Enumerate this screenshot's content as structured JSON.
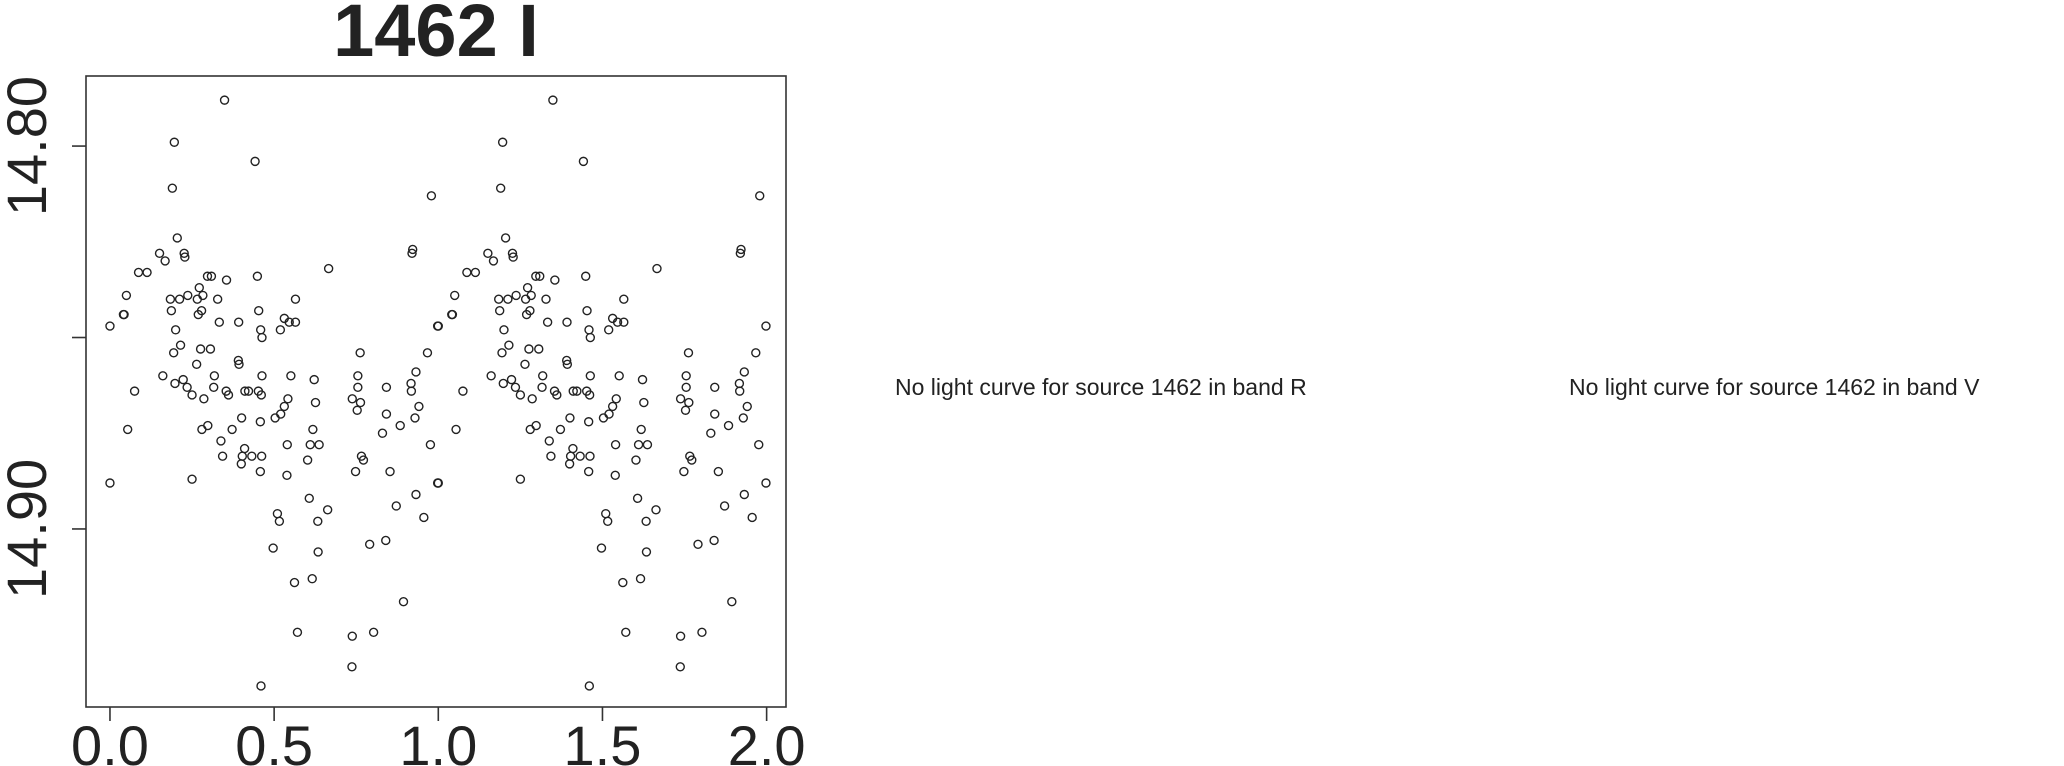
{
  "chart_data": {
    "type": "scatter",
    "title": "1462 I",
    "xlabel": "",
    "ylabel": "",
    "xlim": [
      -0.073,
      2.059
    ],
    "ylim": [
      14.9465,
      14.7817
    ],
    "y_inverted": true,
    "grid": false,
    "x_ticks": [
      0.0,
      0.5,
      1.0,
      1.5,
      2.0
    ],
    "x_tick_labels": [
      "0.0",
      "0.5",
      "1.0",
      "1.5",
      "2.0"
    ],
    "y_ticks": [
      14.8,
      14.85,
      14.9
    ],
    "y_tick_labels": [
      "14.80",
      "",
      "14.90"
    ],
    "marker": "open-circle",
    "marker_color": "#222222",
    "points": [
      [
        0.349,
        14.788
      ],
      [
        0.196,
        14.799
      ],
      [
        0.442,
        14.804
      ],
      [
        0.19,
        14.811
      ],
      [
        0.979,
        14.813
      ],
      [
        0.205,
        14.824
      ],
      [
        0.151,
        14.828
      ],
      [
        0.168,
        14.83
      ],
      [
        0.226,
        14.828
      ],
      [
        0.228,
        14.829
      ],
      [
        0.922,
        14.827
      ],
      [
        0.92,
        14.828
      ],
      [
        0.087,
        14.833
      ],
      [
        0.113,
        14.833
      ],
      [
        0.666,
        14.832
      ],
      [
        0.297,
        14.834
      ],
      [
        0.309,
        14.834
      ],
      [
        0.355,
        14.835
      ],
      [
        0.449,
        14.834
      ],
      [
        0.272,
        14.837
      ],
      [
        0.05,
        14.839
      ],
      [
        0.184,
        14.84
      ],
      [
        0.212,
        14.84
      ],
      [
        0.237,
        14.839
      ],
      [
        0.266,
        14.84
      ],
      [
        0.283,
        14.839
      ],
      [
        0.328,
        14.84
      ],
      [
        0.565,
        14.84
      ],
      [
        0.187,
        14.843
      ],
      [
        0.279,
        14.843
      ],
      [
        0.269,
        14.844
      ],
      [
        0.453,
        14.843
      ],
      [
        0.041,
        14.844
      ],
      [
        0.043,
        14.844
      ],
      [
        0.0,
        14.847
      ],
      [
        0.998,
        14.847
      ],
      [
        0.333,
        14.846
      ],
      [
        0.392,
        14.846
      ],
      [
        0.531,
        14.845
      ],
      [
        0.546,
        14.846
      ],
      [
        0.565,
        14.846
      ],
      [
        0.2,
        14.848
      ],
      [
        0.459,
        14.848
      ],
      [
        0.463,
        14.85
      ],
      [
        0.519,
        14.848
      ],
      [
        0.215,
        14.852
      ],
      [
        0.194,
        14.854
      ],
      [
        0.276,
        14.853
      ],
      [
        0.306,
        14.853
      ],
      [
        0.264,
        14.857
      ],
      [
        0.391,
        14.856
      ],
      [
        0.393,
        14.857
      ],
      [
        0.762,
        14.854
      ],
      [
        0.967,
        14.854
      ],
      [
        0.932,
        14.859
      ],
      [
        0.161,
        14.86
      ],
      [
        0.198,
        14.862
      ],
      [
        0.223,
        14.861
      ],
      [
        0.235,
        14.863
      ],
      [
        0.318,
        14.86
      ],
      [
        0.316,
        14.863
      ],
      [
        0.463,
        14.86
      ],
      [
        0.551,
        14.86
      ],
      [
        0.622,
        14.861
      ],
      [
        0.755,
        14.86
      ],
      [
        0.755,
        14.863
      ],
      [
        0.842,
        14.863
      ],
      [
        0.917,
        14.862
      ],
      [
        0.918,
        14.864
      ],
      [
        0.075,
        14.864
      ],
      [
        0.354,
        14.864
      ],
      [
        0.411,
        14.864
      ],
      [
        0.422,
        14.864
      ],
      [
        0.452,
        14.864
      ],
      [
        0.25,
        14.865
      ],
      [
        0.286,
        14.866
      ],
      [
        0.361,
        14.865
      ],
      [
        0.461,
        14.865
      ],
      [
        0.542,
        14.866
      ],
      [
        0.626,
        14.867
      ],
      [
        0.738,
        14.866
      ],
      [
        0.763,
        14.867
      ],
      [
        0.753,
        14.869
      ],
      [
        0.941,
        14.868
      ],
      [
        0.531,
        14.868
      ],
      [
        0.52,
        14.87
      ],
      [
        0.503,
        14.871
      ],
      [
        0.401,
        14.871
      ],
      [
        0.458,
        14.872
      ],
      [
        0.842,
        14.87
      ],
      [
        0.929,
        14.871
      ],
      [
        0.884,
        14.873
      ],
      [
        0.83,
        14.875
      ],
      [
        0.054,
        14.874
      ],
      [
        0.28,
        14.874
      ],
      [
        0.298,
        14.873
      ],
      [
        0.372,
        14.874
      ],
      [
        0.618,
        14.874
      ],
      [
        0.338,
        14.877
      ],
      [
        0.54,
        14.878
      ],
      [
        0.61,
        14.878
      ],
      [
        0.637,
        14.878
      ],
      [
        0.976,
        14.878
      ],
      [
        0.41,
        14.879
      ],
      [
        0.343,
        14.881
      ],
      [
        0.403,
        14.881
      ],
      [
        0.432,
        14.881
      ],
      [
        0.462,
        14.881
      ],
      [
        0.4,
        14.883
      ],
      [
        0.602,
        14.882
      ],
      [
        0.766,
        14.881
      ],
      [
        0.772,
        14.882
      ],
      [
        0.458,
        14.885
      ],
      [
        0.539,
        14.886
      ],
      [
        0.748,
        14.885
      ],
      [
        0.853,
        14.885
      ],
      [
        0.0,
        14.888
      ],
      [
        0.25,
        14.887
      ],
      [
        0.998,
        14.888
      ],
      [
        0.607,
        14.892
      ],
      [
        0.663,
        14.895
      ],
      [
        0.932,
        14.891
      ],
      [
        0.872,
        14.894
      ],
      [
        0.956,
        14.897
      ],
      [
        0.51,
        14.896
      ],
      [
        0.516,
        14.898
      ],
      [
        0.633,
        14.898
      ],
      [
        0.497,
        14.905
      ],
      [
        0.634,
        14.906
      ],
      [
        0.791,
        14.904
      ],
      [
        0.84,
        14.903
      ],
      [
        0.562,
        14.914
      ],
      [
        0.616,
        14.913
      ],
      [
        0.894,
        14.919
      ],
      [
        0.571,
        14.927
      ],
      [
        0.738,
        14.928
      ],
      [
        0.803,
        14.927
      ],
      [
        0.737,
        14.936
      ],
      [
        0.46,
        14.941
      ],
      [
        1.349,
        14.788
      ],
      [
        1.196,
        14.799
      ],
      [
        1.442,
        14.804
      ],
      [
        1.19,
        14.811
      ],
      [
        1.979,
        14.813
      ],
      [
        1.205,
        14.824
      ],
      [
        1.151,
        14.828
      ],
      [
        1.168,
        14.83
      ],
      [
        1.226,
        14.828
      ],
      [
        1.228,
        14.829
      ],
      [
        1.922,
        14.827
      ],
      [
        1.92,
        14.828
      ],
      [
        1.087,
        14.833
      ],
      [
        1.113,
        14.833
      ],
      [
        1.666,
        14.832
      ],
      [
        1.297,
        14.834
      ],
      [
        1.309,
        14.834
      ],
      [
        1.355,
        14.835
      ],
      [
        1.449,
        14.834
      ],
      [
        1.272,
        14.837
      ],
      [
        1.05,
        14.839
      ],
      [
        1.184,
        14.84
      ],
      [
        1.212,
        14.84
      ],
      [
        1.237,
        14.839
      ],
      [
        1.266,
        14.84
      ],
      [
        1.283,
        14.839
      ],
      [
        1.328,
        14.84
      ],
      [
        1.565,
        14.84
      ],
      [
        1.187,
        14.843
      ],
      [
        1.279,
        14.843
      ],
      [
        1.269,
        14.844
      ],
      [
        1.453,
        14.843
      ],
      [
        1.041,
        14.844
      ],
      [
        1.043,
        14.844
      ],
      [
        1.0,
        14.847
      ],
      [
        1.998,
        14.847
      ],
      [
        1.333,
        14.846
      ],
      [
        1.392,
        14.846
      ],
      [
        1.531,
        14.845
      ],
      [
        1.546,
        14.846
      ],
      [
        1.565,
        14.846
      ],
      [
        1.2,
        14.848
      ],
      [
        1.459,
        14.848
      ],
      [
        1.463,
        14.85
      ],
      [
        1.519,
        14.848
      ],
      [
        1.215,
        14.852
      ],
      [
        1.194,
        14.854
      ],
      [
        1.276,
        14.853
      ],
      [
        1.306,
        14.853
      ],
      [
        1.264,
        14.857
      ],
      [
        1.391,
        14.856
      ],
      [
        1.393,
        14.857
      ],
      [
        1.762,
        14.854
      ],
      [
        1.967,
        14.854
      ],
      [
        1.932,
        14.859
      ],
      [
        1.161,
        14.86
      ],
      [
        1.198,
        14.862
      ],
      [
        1.223,
        14.861
      ],
      [
        1.235,
        14.863
      ],
      [
        1.318,
        14.86
      ],
      [
        1.316,
        14.863
      ],
      [
        1.463,
        14.86
      ],
      [
        1.551,
        14.86
      ],
      [
        1.622,
        14.861
      ],
      [
        1.755,
        14.86
      ],
      [
        1.755,
        14.863
      ],
      [
        1.842,
        14.863
      ],
      [
        1.917,
        14.862
      ],
      [
        1.918,
        14.864
      ],
      [
        1.075,
        14.864
      ],
      [
        1.354,
        14.864
      ],
      [
        1.411,
        14.864
      ],
      [
        1.422,
        14.864
      ],
      [
        1.452,
        14.864
      ],
      [
        1.25,
        14.865
      ],
      [
        1.286,
        14.866
      ],
      [
        1.361,
        14.865
      ],
      [
        1.461,
        14.865
      ],
      [
        1.542,
        14.866
      ],
      [
        1.626,
        14.867
      ],
      [
        1.738,
        14.866
      ],
      [
        1.763,
        14.867
      ],
      [
        1.753,
        14.869
      ],
      [
        1.941,
        14.868
      ],
      [
        1.531,
        14.868
      ],
      [
        1.52,
        14.87
      ],
      [
        1.503,
        14.871
      ],
      [
        1.401,
        14.871
      ],
      [
        1.458,
        14.872
      ],
      [
        1.842,
        14.87
      ],
      [
        1.929,
        14.871
      ],
      [
        1.884,
        14.873
      ],
      [
        1.83,
        14.875
      ],
      [
        1.054,
        14.874
      ],
      [
        1.28,
        14.874
      ],
      [
        1.298,
        14.873
      ],
      [
        1.372,
        14.874
      ],
      [
        1.618,
        14.874
      ],
      [
        1.338,
        14.877
      ],
      [
        1.54,
        14.878
      ],
      [
        1.61,
        14.878
      ],
      [
        1.637,
        14.878
      ],
      [
        1.976,
        14.878
      ],
      [
        1.41,
        14.879
      ],
      [
        1.343,
        14.881
      ],
      [
        1.403,
        14.881
      ],
      [
        1.432,
        14.881
      ],
      [
        1.462,
        14.881
      ],
      [
        1.4,
        14.883
      ],
      [
        1.602,
        14.882
      ],
      [
        1.766,
        14.881
      ],
      [
        1.772,
        14.882
      ],
      [
        1.458,
        14.885
      ],
      [
        1.539,
        14.886
      ],
      [
        1.748,
        14.885
      ],
      [
        1.853,
        14.885
      ],
      [
        1.0,
        14.888
      ],
      [
        1.25,
        14.887
      ],
      [
        1.998,
        14.888
      ],
      [
        1.607,
        14.892
      ],
      [
        1.663,
        14.895
      ],
      [
        1.932,
        14.891
      ],
      [
        1.872,
        14.894
      ],
      [
        1.956,
        14.897
      ],
      [
        1.51,
        14.896
      ],
      [
        1.516,
        14.898
      ],
      [
        1.633,
        14.898
      ],
      [
        1.497,
        14.905
      ],
      [
        1.634,
        14.906
      ],
      [
        1.791,
        14.904
      ],
      [
        1.84,
        14.903
      ],
      [
        1.562,
        14.914
      ],
      [
        1.616,
        14.913
      ],
      [
        1.894,
        14.919
      ],
      [
        1.571,
        14.927
      ],
      [
        1.738,
        14.928
      ],
      [
        1.803,
        14.927
      ],
      [
        1.737,
        14.936
      ],
      [
        1.46,
        14.941
      ]
    ]
  },
  "messages": {
    "band_r": "No light curve for source 1462 in band R",
    "band_v": "No light curve for source 1462 in band V"
  }
}
